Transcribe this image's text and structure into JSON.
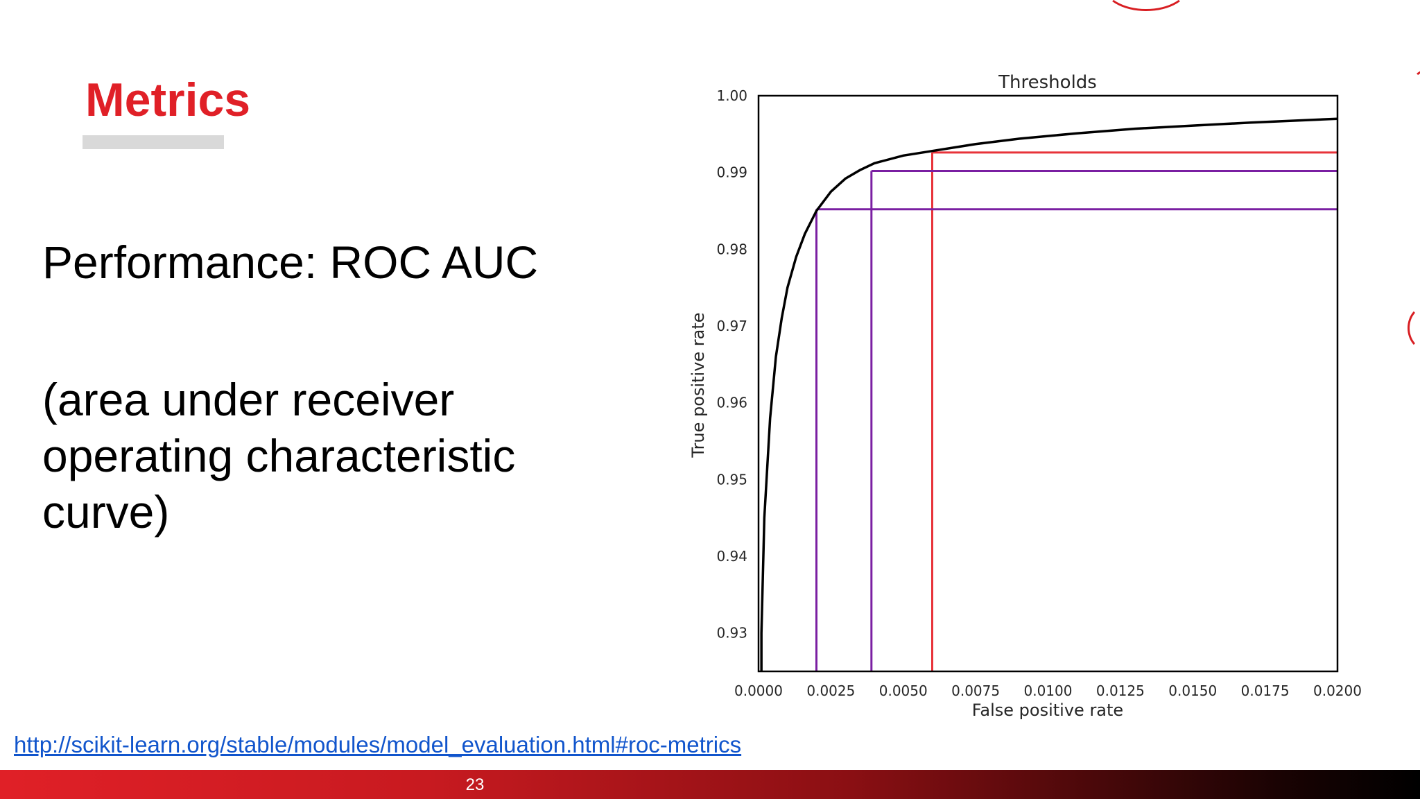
{
  "slide": {
    "title": "Metrics",
    "line1": "Performance: ROC AUC",
    "line2": "(area under receiver operating characteristic curve)",
    "link": "http://scikit-learn.org/stable/modules/model_evaluation.html#roc-metrics",
    "page_number": "23"
  },
  "colors": {
    "title": "#e02027",
    "curve": "#000000",
    "threshold_red": "#e8333a",
    "threshold_purple": "#7a1fa2"
  },
  "chart_data": {
    "type": "line",
    "title": "Thresholds",
    "xlabel": "False positive rate",
    "ylabel": "True positive rate",
    "xlim": [
      0,
      0.02
    ],
    "ylim": [
      0.925,
      1.0
    ],
    "x_ticks": [
      "0.0000",
      "0.0025",
      "0.0050",
      "0.0075",
      "0.0100",
      "0.0125",
      "0.0150",
      "0.0175",
      "0.0200"
    ],
    "y_ticks": [
      "0.93",
      "0.94",
      "0.95",
      "0.96",
      "0.97",
      "0.98",
      "0.99",
      "1.00"
    ],
    "grid": false,
    "series": [
      {
        "x": [
          0.0001,
          0.0002,
          0.0004,
          0.0006,
          0.0008,
          0.001,
          0.0013,
          0.0016,
          0.002,
          0.0025,
          0.003,
          0.0035,
          0.004,
          0.005,
          0.006,
          0.0075,
          0.009,
          0.011,
          0.013,
          0.015,
          0.017,
          0.02
        ],
        "y": [
          0.93,
          0.945,
          0.958,
          0.966,
          0.971,
          0.975,
          0.979,
          0.982,
          0.985,
          0.9875,
          0.9892,
          0.9903,
          0.9912,
          0.9922,
          0.9928,
          0.9937,
          0.9944,
          0.9951,
          0.9957,
          0.9961,
          0.9965,
          0.997
        ]
      }
    ],
    "thresholds": [
      {
        "color": "red",
        "x": 0.006,
        "y": 0.9926
      },
      {
        "color": "purple",
        "x": 0.0039,
        "y": 0.9902
      },
      {
        "color": "purple",
        "x": 0.002,
        "y": 0.9852
      }
    ]
  }
}
